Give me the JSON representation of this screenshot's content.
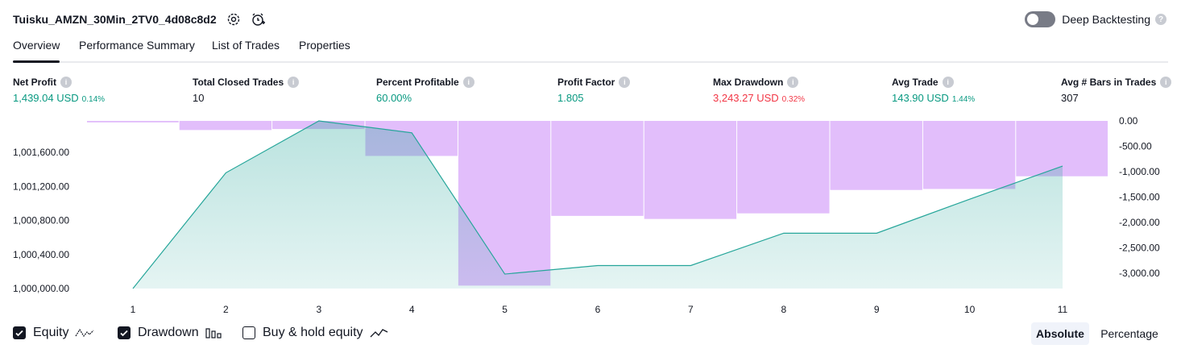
{
  "header": {
    "title": "Tuisku_AMZN_30Min_2TV0_4d08c8d2",
    "deep_backtesting_label": "Deep Backtesting",
    "deep_backtesting_enabled": false
  },
  "tabs": [
    "Overview",
    "Performance Summary",
    "List of Trades",
    "Properties"
  ],
  "active_tab": "Overview",
  "metrics": [
    {
      "label": "Net Profit",
      "value": "1,439.04 USD",
      "pct": "0.14%",
      "color": "#089981"
    },
    {
      "label": "Total Closed Trades",
      "value": "10",
      "pct": "",
      "color": "#131722"
    },
    {
      "label": "Percent Profitable",
      "value": "60.00%",
      "pct": "",
      "color": "#089981"
    },
    {
      "label": "Profit Factor",
      "value": "1.805",
      "pct": "",
      "color": "#089981"
    },
    {
      "label": "Max Drawdown",
      "value": "3,243.27 USD",
      "pct": "0.32%",
      "color": "#f23645"
    },
    {
      "label": "Avg Trade",
      "value": "143.90 USD",
      "pct": "1.44%",
      "color": "#089981"
    },
    {
      "label": "Avg # Bars in Trades",
      "value": "307",
      "pct": "",
      "color": "#131722"
    }
  ],
  "chart_data": {
    "type": "area",
    "x": [
      1,
      2,
      3,
      4,
      5,
      6,
      7,
      8,
      9,
      10,
      11
    ],
    "left_axis": {
      "ticks": [
        "1,000,000.00",
        "1,000,400.00",
        "1,000,800.00",
        "1,001,200.00",
        "1,001,600.00"
      ],
      "range": [
        1000000,
        1001970
      ]
    },
    "right_axis": {
      "ticks": [
        "0.00",
        "-500.00",
        "-1,000.00",
        "-1,500.00",
        "-2,000.00",
        "-2,500.00",
        "-3,000.00"
      ],
      "range": [
        -3300,
        0
      ]
    },
    "series": [
      {
        "name": "Equity",
        "axis": "left",
        "color": "#26a69a",
        "values": [
          1000000,
          1001360,
          1001970,
          1001830,
          1000170,
          1000270,
          1000270,
          1000650,
          1000650,
          1001050,
          1001439
        ]
      },
      {
        "name": "Drawdown",
        "axis": "right",
        "type": "bar",
        "color": "#ce93f8",
        "values": [
          -30,
          -180,
          -160,
          -690,
          -3243,
          -1870,
          -1930,
          -1820,
          -1360,
          -1340,
          -1090
        ]
      }
    ],
    "legend_position": "bottom-left"
  },
  "legend": {
    "equity": {
      "label": "Equity",
      "checked": true
    },
    "drawdown": {
      "label": "Drawdown",
      "checked": true
    },
    "buyhold": {
      "label": "Buy & hold equity",
      "checked": false
    }
  },
  "view_mode": {
    "absolute_label": "Absolute",
    "percentage_label": "Percentage",
    "selected": "Absolute"
  }
}
